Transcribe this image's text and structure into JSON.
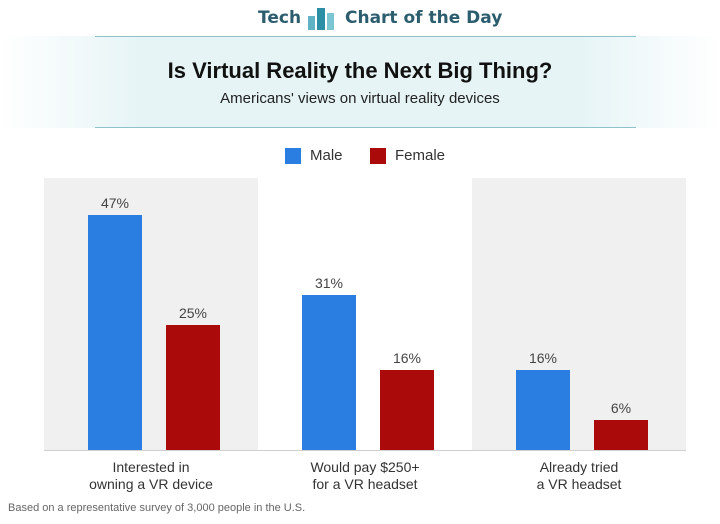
{
  "header": {
    "brand_left": "Tech",
    "brand_right": "Chart of the Day"
  },
  "title": "Is Virtual Reality the Next Big Thing?",
  "subtitle": "Americans' views on virtual reality devices",
  "footnote": "Based on a representative survey of 3,000 people in the U.S.",
  "colors": {
    "male": "#2a7de1",
    "female": "#aa0a0a",
    "panel": "#f0f0f0",
    "brand": "#2b5d6e"
  },
  "chart_data": {
    "type": "bar",
    "categories": [
      [
        "Interested in",
        "owning a VR device"
      ],
      [
        "Would pay $250+",
        "for a VR headset"
      ],
      [
        "Already tried",
        "a VR headset"
      ]
    ],
    "series": [
      {
        "name": "Male",
        "values": [
          47,
          31,
          16
        ],
        "labels": [
          "47%",
          "31%",
          "16%"
        ]
      },
      {
        "name": "Female",
        "values": [
          25,
          16,
          6
        ],
        "labels": [
          "25%",
          "16%",
          "6%"
        ]
      }
    ],
    "ylim": [
      0,
      50
    ],
    "legend_position": "top-center",
    "grid": false,
    "alternating_panels": true
  }
}
